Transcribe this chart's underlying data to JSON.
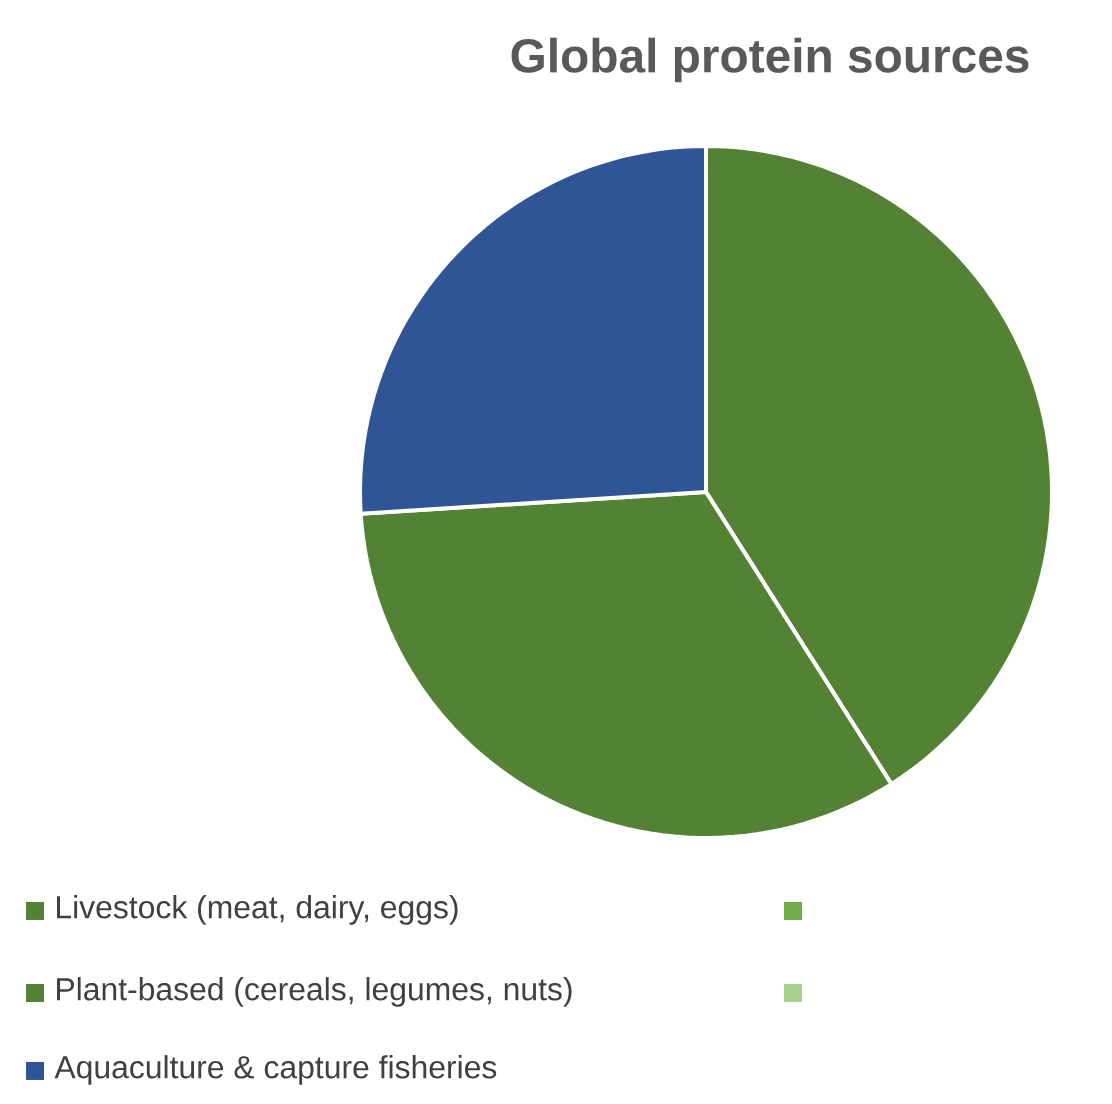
{
  "chart_data": {
    "type": "pie",
    "title": "Global protein sources",
    "categories": [
      "Livestock (meat, dairy, eggs)",
      null,
      "Plant-based (cereals, legumes, nuts)",
      null,
      "Aquaculture & capture fisheries"
    ],
    "values": [
      41,
      0,
      33,
      0,
      26
    ],
    "colors": [
      "#548235",
      "#70ad47",
      "#548235",
      "#a9d18e",
      "#2f5597"
    ],
    "legend": "bottom"
  }
}
